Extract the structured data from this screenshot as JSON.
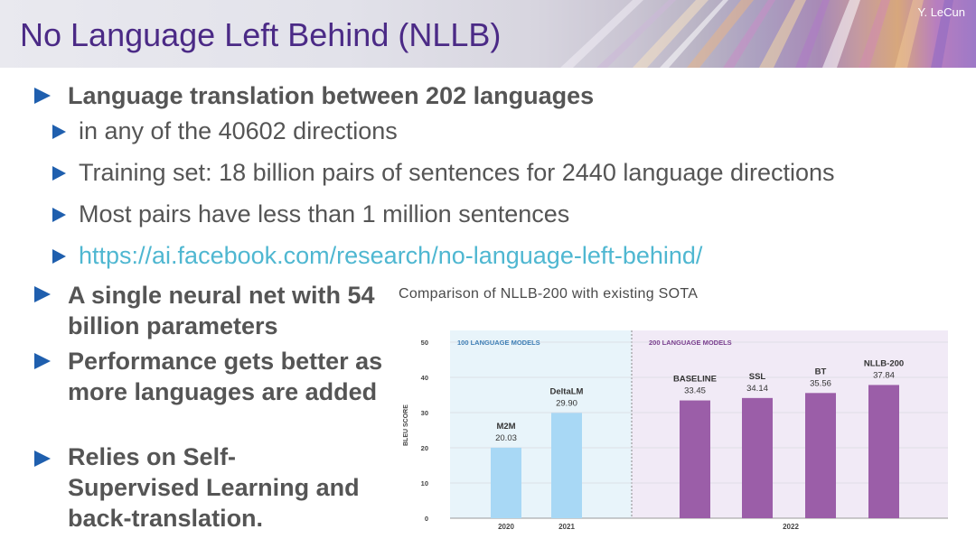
{
  "header": {
    "title": "No Language Left Behind (NLLB)",
    "author": "Y. LeCun"
  },
  "bullets": {
    "main1": "Language translation between 202 languages",
    "sub1": "in any of the 40602 directions",
    "sub2": "Training set: 18 billion pairs of sentences for 2440 language directions",
    "sub3": "Most pairs have less than 1 million sentences",
    "sub4_link": "https://ai.facebook.com/research/no-language-left-behind/",
    "main2": "A single neural net with 54 billion parameters",
    "main3": "Performance gets better as more languages are added",
    "main4": "Relies on Self-Supervised Learning and back-translation."
  },
  "colors": {
    "title": "#4b2a86",
    "bullet": "#1f5fae",
    "text": "#555555",
    "link": "#4fb7d1",
    "bar_100": "#a8d8f5",
    "bar_200": "#9b5ea8",
    "panel_100": "#e8f4fa",
    "panel_200": "#f1eaf6"
  },
  "chart_data": {
    "type": "bar",
    "title": "Comparison of NLLB-200 with existing SOTA",
    "ylabel": "BLEU SCORE",
    "ylim": [
      0,
      50
    ],
    "yticks": [
      0,
      10,
      20,
      30,
      40,
      50
    ],
    "groups": [
      {
        "label": "100 LANGUAGE MODELS",
        "bars": [
          {
            "name": "M2M",
            "value": 20.03,
            "value_label": "20.03",
            "year": "2020"
          },
          {
            "name": "DeltaLM",
            "value": 29.9,
            "value_label": "29.90",
            "year": "2021"
          }
        ]
      },
      {
        "label": "200 LANGUAGE MODELS",
        "year": "2022",
        "bars": [
          {
            "name": "BASELINE",
            "value": 33.45,
            "value_label": "33.45"
          },
          {
            "name": "SSL",
            "value": 34.14,
            "value_label": "34.14"
          },
          {
            "name": "BT",
            "value": 35.56,
            "value_label": "35.56"
          },
          {
            "name": "NLLB-200",
            "value": 37.84,
            "value_label": "37.84"
          }
        ]
      }
    ]
  }
}
